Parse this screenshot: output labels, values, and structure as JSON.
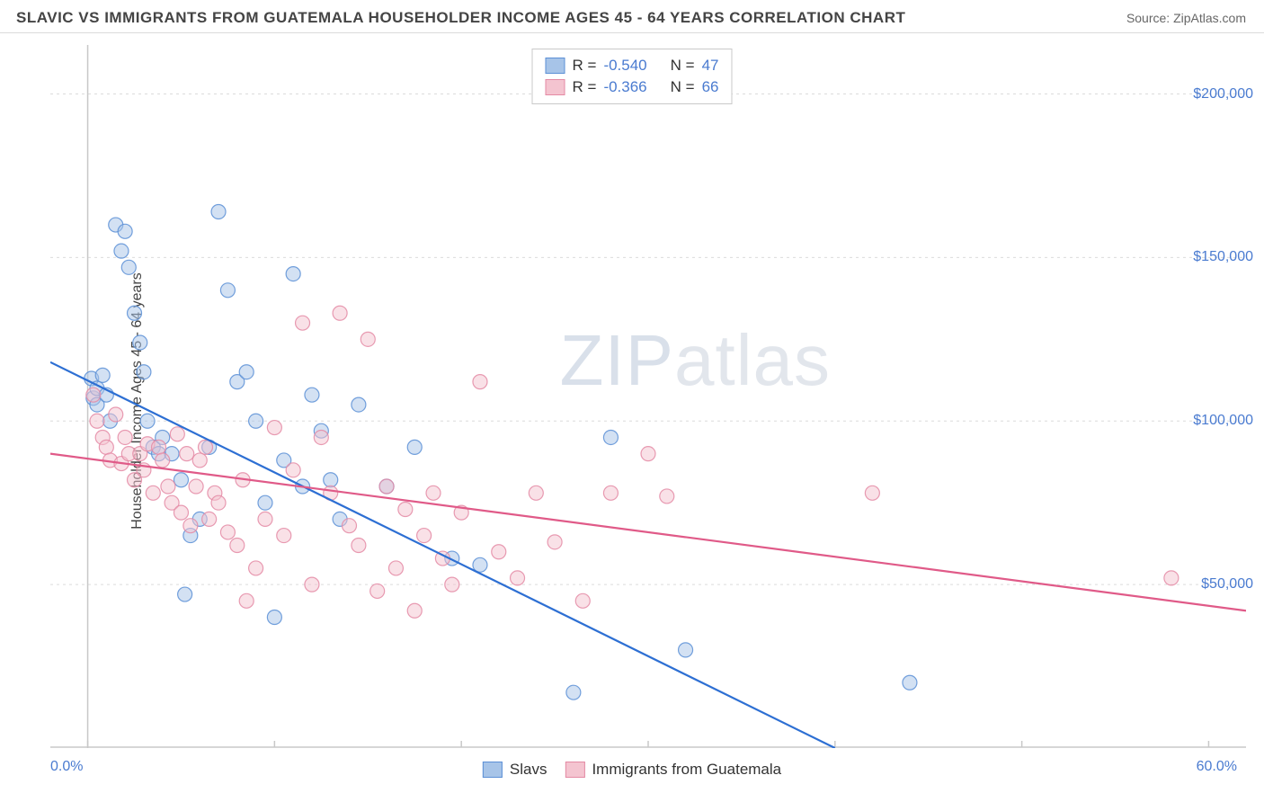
{
  "title": "SLAVIC VS IMMIGRANTS FROM GUATEMALA HOUSEHOLDER INCOME AGES 45 - 64 YEARS CORRELATION CHART",
  "source_label": "Source: ",
  "source_name": "ZipAtlas.com",
  "watermark_a": "ZIP",
  "watermark_b": "atlas",
  "chart": {
    "type": "scatter",
    "y_label": "Householder Income Ages 45 - 64 years",
    "x_min_label": "0.0%",
    "x_max_label": "60.0%",
    "xlim": [
      -2,
      62
    ],
    "ylim": [
      0,
      215000
    ],
    "y_ticks": [
      50000,
      100000,
      150000,
      200000
    ],
    "y_tick_labels": [
      "$50,000",
      "$100,000",
      "$150,000",
      "$200,000"
    ],
    "x_tick_marks": [
      0,
      10,
      20,
      30,
      40,
      50,
      60
    ],
    "grid_color": "#dcdcdc",
    "axis_color": "#c8c8c8",
    "background_color": "#ffffff",
    "marker_radius": 8,
    "marker_opacity": 0.5,
    "line_width": 2.2,
    "series": [
      {
        "name": "Slavs",
        "color_fill": "#a7c4e8",
        "color_stroke": "#5b8fd6",
        "line_color": "#2d6fd3",
        "R": "-0.540",
        "N": "47",
        "trend": {
          "x1": -2,
          "y1": 118000,
          "x2": 40,
          "y2": 0
        },
        "points": [
          [
            0.2,
            113000
          ],
          [
            0.3,
            107000
          ],
          [
            0.5,
            110000
          ],
          [
            0.5,
            105000
          ],
          [
            0.8,
            114000
          ],
          [
            1.0,
            108000
          ],
          [
            1.2,
            100000
          ],
          [
            1.5,
            160000
          ],
          [
            1.8,
            152000
          ],
          [
            2.0,
            158000
          ],
          [
            2.2,
            147000
          ],
          [
            2.5,
            133000
          ],
          [
            2.8,
            124000
          ],
          [
            3.0,
            115000
          ],
          [
            3.2,
            100000
          ],
          [
            3.5,
            92000
          ],
          [
            3.8,
            90000
          ],
          [
            4.0,
            95000
          ],
          [
            4.5,
            90000
          ],
          [
            5.0,
            82000
          ],
          [
            5.2,
            47000
          ],
          [
            5.5,
            65000
          ],
          [
            6.0,
            70000
          ],
          [
            6.5,
            92000
          ],
          [
            7.0,
            164000
          ],
          [
            7.5,
            140000
          ],
          [
            8.0,
            112000
          ],
          [
            8.5,
            115000
          ],
          [
            9.0,
            100000
          ],
          [
            9.5,
            75000
          ],
          [
            10.0,
            40000
          ],
          [
            10.5,
            88000
          ],
          [
            11.0,
            145000
          ],
          [
            11.5,
            80000
          ],
          [
            12.0,
            108000
          ],
          [
            12.5,
            97000
          ],
          [
            13.0,
            82000
          ],
          [
            13.5,
            70000
          ],
          [
            14.5,
            105000
          ],
          [
            16.0,
            80000
          ],
          [
            17.5,
            92000
          ],
          [
            19.5,
            58000
          ],
          [
            21.0,
            56000
          ],
          [
            26.0,
            17000
          ],
          [
            28.0,
            95000
          ],
          [
            32.0,
            30000
          ],
          [
            44.0,
            20000
          ]
        ]
      },
      {
        "name": "Immigrants from Guatemala",
        "color_fill": "#f4c4d0",
        "color_stroke": "#e48aa4",
        "line_color": "#e05a88",
        "R": "-0.366",
        "N": "66",
        "trend": {
          "x1": -2,
          "y1": 90000,
          "x2": 62,
          "y2": 42000
        },
        "points": [
          [
            0.3,
            108000
          ],
          [
            0.5,
            100000
          ],
          [
            0.8,
            95000
          ],
          [
            1.0,
            92000
          ],
          [
            1.2,
            88000
          ],
          [
            1.5,
            102000
          ],
          [
            1.8,
            87000
          ],
          [
            2.0,
            95000
          ],
          [
            2.2,
            90000
          ],
          [
            2.5,
            82000
          ],
          [
            2.8,
            90000
          ],
          [
            3.0,
            85000
          ],
          [
            3.2,
            93000
          ],
          [
            3.5,
            78000
          ],
          [
            3.8,
            92000
          ],
          [
            4.0,
            88000
          ],
          [
            4.3,
            80000
          ],
          [
            4.5,
            75000
          ],
          [
            4.8,
            96000
          ],
          [
            5.0,
            72000
          ],
          [
            5.3,
            90000
          ],
          [
            5.5,
            68000
          ],
          [
            5.8,
            80000
          ],
          [
            6.0,
            88000
          ],
          [
            6.3,
            92000
          ],
          [
            6.5,
            70000
          ],
          [
            6.8,
            78000
          ],
          [
            7.0,
            75000
          ],
          [
            7.5,
            66000
          ],
          [
            8.0,
            62000
          ],
          [
            8.3,
            82000
          ],
          [
            8.5,
            45000
          ],
          [
            9.0,
            55000
          ],
          [
            9.5,
            70000
          ],
          [
            10.0,
            98000
          ],
          [
            10.5,
            65000
          ],
          [
            11.0,
            85000
          ],
          [
            11.5,
            130000
          ],
          [
            12.0,
            50000
          ],
          [
            12.5,
            95000
          ],
          [
            13.0,
            78000
          ],
          [
            13.5,
            133000
          ],
          [
            14.0,
            68000
          ],
          [
            14.5,
            62000
          ],
          [
            15.0,
            125000
          ],
          [
            15.5,
            48000
          ],
          [
            16.0,
            80000
          ],
          [
            16.5,
            55000
          ],
          [
            17.0,
            73000
          ],
          [
            17.5,
            42000
          ],
          [
            18.0,
            65000
          ],
          [
            18.5,
            78000
          ],
          [
            19.0,
            58000
          ],
          [
            19.5,
            50000
          ],
          [
            20.0,
            72000
          ],
          [
            21.0,
            112000
          ],
          [
            22.0,
            60000
          ],
          [
            23.0,
            52000
          ],
          [
            24.0,
            78000
          ],
          [
            25.0,
            63000
          ],
          [
            26.5,
            45000
          ],
          [
            28.0,
            78000
          ],
          [
            30.0,
            90000
          ],
          [
            31.0,
            77000
          ],
          [
            42.0,
            78000
          ],
          [
            58.0,
            52000
          ]
        ]
      }
    ]
  },
  "legend_top": {
    "r_label": "R =",
    "n_label": "N ="
  },
  "legend_bottom": {}
}
